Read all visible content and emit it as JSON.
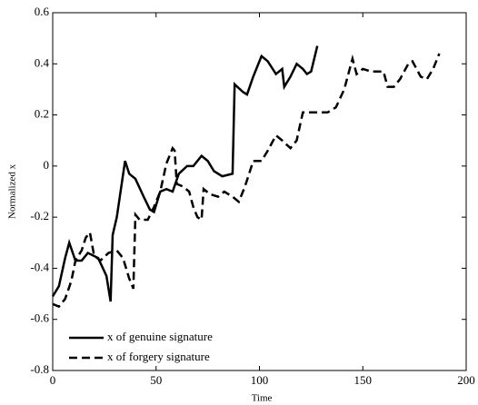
{
  "chart_data": {
    "type": "line",
    "xlabel": "Time",
    "ylabel": "Normalized x",
    "xlim": [
      0,
      200
    ],
    "xticks": [
      0,
      50,
      100,
      150,
      200
    ],
    "ylim": [
      -0.8,
      0.6
    ],
    "yticks": [
      -0.8,
      -0.6,
      -0.4,
      -0.2,
      0,
      0.2,
      0.4,
      0.6
    ],
    "grid": false,
    "legend": "lower left",
    "series": [
      {
        "name": "x of genuine signature",
        "color": "#000000",
        "dash": "solid",
        "x": [
          0,
          3,
          6,
          8,
          11,
          14,
          17,
          22,
          26,
          28,
          29,
          31,
          35,
          37,
          40,
          44,
          47,
          49,
          52,
          55,
          58,
          61,
          65,
          68,
          72,
          75,
          78,
          82,
          87,
          88,
          92,
          94,
          97,
          101,
          104,
          108,
          111,
          112,
          115,
          118,
          121,
          123,
          125,
          128
        ],
        "values": [
          -0.51,
          -0.47,
          -0.36,
          -0.3,
          -0.37,
          -0.37,
          -0.34,
          -0.36,
          -0.43,
          -0.53,
          -0.27,
          -0.2,
          0.02,
          -0.03,
          -0.05,
          -0.12,
          -0.17,
          -0.18,
          -0.1,
          -0.09,
          -0.1,
          -0.03,
          0,
          0,
          0.04,
          0.02,
          -0.02,
          -0.04,
          -0.03,
          0.32,
          0.29,
          0.28,
          0.35,
          0.43,
          0.41,
          0.36,
          0.38,
          0.31,
          0.35,
          0.4,
          0.38,
          0.36,
          0.37,
          0.47
        ]
      },
      {
        "name": "x of forgery signature",
        "color": "#000000",
        "dash": "dashed",
        "x": [
          0,
          3,
          6,
          9,
          11,
          14,
          16,
          18,
          20,
          23,
          27,
          31,
          34,
          37,
          39,
          40,
          42,
          46,
          49,
          52,
          55,
          58,
          59,
          60,
          63,
          66,
          68,
          70,
          72,
          73,
          76,
          80,
          83,
          87,
          90,
          93,
          97,
          101,
          104,
          108,
          111,
          115,
          118,
          121,
          127,
          133,
          137,
          141,
          145,
          147,
          150,
          154,
          160,
          162,
          165,
          168,
          172,
          174,
          178,
          181,
          184,
          187
        ],
        "values": [
          -0.54,
          -0.55,
          -0.52,
          -0.45,
          -0.37,
          -0.33,
          -0.28,
          -0.26,
          -0.35,
          -0.37,
          -0.34,
          -0.33,
          -0.36,
          -0.44,
          -0.48,
          -0.19,
          -0.21,
          -0.21,
          -0.16,
          -0.1,
          0.01,
          0.07,
          0.06,
          -0.07,
          -0.08,
          -0.1,
          -0.16,
          -0.2,
          -0.21,
          -0.09,
          -0.11,
          -0.12,
          -0.1,
          -0.12,
          -0.14,
          -0.08,
          0.02,
          0.02,
          0.06,
          0.12,
          0.1,
          0.07,
          0.1,
          0.21,
          0.21,
          0.21,
          0.23,
          0.3,
          0.42,
          0.36,
          0.38,
          0.37,
          0.37,
          0.31,
          0.31,
          0.34,
          0.4,
          0.41,
          0.35,
          0.34,
          0.38,
          0.44
        ]
      }
    ]
  }
}
